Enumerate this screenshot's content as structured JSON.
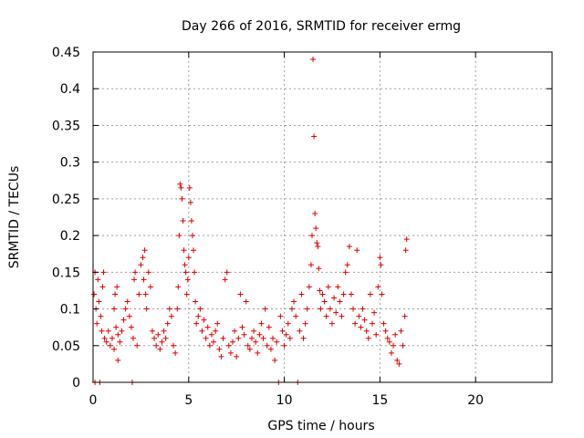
{
  "chart_data": {
    "type": "scatter",
    "title": "Day 266 of 2016, SRMTID for receiver ermg",
    "xlabel": "GPS time / hours",
    "ylabel": "SRMTID / TECUs",
    "xlim": [
      0,
      24
    ],
    "ylim": [
      0,
      0.45
    ],
    "xticks": [
      0,
      5,
      10,
      15,
      20
    ],
    "xtick_labels": [
      "0",
      "5",
      "10",
      "15",
      "20"
    ],
    "yticks": [
      0,
      0.05,
      0.1,
      0.15,
      0.2,
      0.25,
      0.3,
      0.35,
      0.4,
      0.45
    ],
    "ytick_labels": [
      "0",
      "0.05",
      "0.1",
      "0.15",
      "0.2",
      "0.25",
      "0.3",
      "0.35",
      "0.4",
      "0.45"
    ],
    "grid": true,
    "marker": "plus",
    "series": [
      {
        "name": "SRMTID",
        "color": "#e00000",
        "points": [
          [
            0.05,
            0.12
          ],
          [
            0.1,
            0.15
          ],
          [
            0.1,
            0.0
          ],
          [
            0.15,
            0.1
          ],
          [
            0.2,
            0.08
          ],
          [
            0.25,
            0.14
          ],
          [
            0.3,
            0.11
          ],
          [
            0.35,
            0.0
          ],
          [
            0.4,
            0.09
          ],
          [
            0.45,
            0.07
          ],
          [
            0.5,
            0.13
          ],
          [
            0.55,
            0.15
          ],
          [
            0.6,
            0.06
          ],
          [
            0.7,
            0.055
          ],
          [
            0.8,
            0.07
          ],
          [
            0.9,
            0.05
          ],
          [
            1.0,
            0.06
          ],
          [
            1.1,
            0.045
          ],
          [
            1.2,
            0.075
          ],
          [
            1.3,
            0.065
          ],
          [
            1.1,
            0.1
          ],
          [
            1.15,
            0.12
          ],
          [
            1.25,
            0.13
          ],
          [
            1.3,
            0.03
          ],
          [
            1.4,
            0.055
          ],
          [
            1.5,
            0.07
          ],
          [
            1.6,
            0.085
          ],
          [
            1.7,
            0.1
          ],
          [
            1.8,
            0.11
          ],
          [
            1.9,
            0.09
          ],
          [
            2.0,
            0.075
          ],
          [
            2.05,
            0.0
          ],
          [
            2.1,
            0.06
          ],
          [
            2.15,
            0.14
          ],
          [
            2.2,
            0.15
          ],
          [
            2.3,
            0.05
          ],
          [
            2.4,
            0.12
          ],
          [
            2.5,
            0.16
          ],
          [
            2.6,
            0.17
          ],
          [
            2.65,
            0.14
          ],
          [
            2.7,
            0.18
          ],
          [
            2.75,
            0.12
          ],
          [
            2.8,
            0.1
          ],
          [
            2.9,
            0.15
          ],
          [
            3.0,
            0.13
          ],
          [
            3.1,
            0.07
          ],
          [
            3.2,
            0.06
          ],
          [
            3.3,
            0.05
          ],
          [
            3.4,
            0.065
          ],
          [
            3.5,
            0.045
          ],
          [
            3.6,
            0.055
          ],
          [
            3.7,
            0.07
          ],
          [
            3.8,
            0.06
          ],
          [
            3.9,
            0.08
          ],
          [
            4.0,
            0.1
          ],
          [
            4.1,
            0.09
          ],
          [
            4.2,
            0.05
          ],
          [
            4.3,
            0.04
          ],
          [
            4.4,
            0.1
          ],
          [
            4.45,
            0.13
          ],
          [
            4.5,
            0.2
          ],
          [
            4.55,
            0.27
          ],
          [
            4.6,
            0.265
          ],
          [
            4.65,
            0.25
          ],
          [
            4.7,
            0.22
          ],
          [
            4.75,
            0.18
          ],
          [
            4.8,
            0.16
          ],
          [
            4.85,
            0.15
          ],
          [
            4.9,
            0.12
          ],
          [
            4.95,
            0.14
          ],
          [
            5.0,
            0.17
          ],
          [
            5.05,
            0.265
          ],
          [
            5.1,
            0.245
          ],
          [
            5.15,
            0.22
          ],
          [
            5.2,
            0.2
          ],
          [
            5.25,
            0.18
          ],
          [
            5.3,
            0.15
          ],
          [
            5.35,
            0.11
          ],
          [
            5.4,
            0.08
          ],
          [
            5.5,
            0.09
          ],
          [
            5.6,
            0.1
          ],
          [
            5.7,
            0.07
          ],
          [
            5.8,
            0.085
          ],
          [
            5.9,
            0.06
          ],
          [
            6.0,
            0.075
          ],
          [
            6.1,
            0.05
          ],
          [
            6.2,
            0.065
          ],
          [
            6.3,
            0.055
          ],
          [
            6.4,
            0.07
          ],
          [
            6.5,
            0.08
          ],
          [
            6.6,
            0.045
          ],
          [
            6.7,
            0.035
          ],
          [
            6.8,
            0.06
          ],
          [
            6.9,
            0.14
          ],
          [
            7.0,
            0.15
          ],
          [
            7.1,
            0.05
          ],
          [
            7.2,
            0.04
          ],
          [
            7.3,
            0.055
          ],
          [
            7.4,
            0.07
          ],
          [
            7.5,
            0.035
          ],
          [
            7.6,
            0.06
          ],
          [
            7.7,
            0.12
          ],
          [
            7.8,
            0.075
          ],
          [
            7.9,
            0.065
          ],
          [
            8.0,
            0.11
          ],
          [
            8.1,
            0.05
          ],
          [
            8.2,
            0.045
          ],
          [
            8.3,
            0.06
          ],
          [
            8.4,
            0.07
          ],
          [
            8.5,
            0.055
          ],
          [
            8.6,
            0.04
          ],
          [
            8.7,
            0.065
          ],
          [
            8.8,
            0.08
          ],
          [
            8.9,
            0.06
          ],
          [
            9.0,
            0.1
          ],
          [
            9.1,
            0.05
          ],
          [
            9.2,
            0.075
          ],
          [
            9.3,
            0.045
          ],
          [
            9.4,
            0.06
          ],
          [
            9.5,
            0.03
          ],
          [
            9.6,
            0.055
          ],
          [
            9.7,
            0.0
          ],
          [
            9.8,
            0.09
          ],
          [
            9.9,
            0.07
          ],
          [
            10.0,
            0.05
          ],
          [
            10.1,
            0.065
          ],
          [
            10.2,
            0.08
          ],
          [
            10.3,
            0.06
          ],
          [
            10.4,
            0.1
          ],
          [
            10.5,
            0.11
          ],
          [
            10.6,
            0.09
          ],
          [
            10.7,
            0.0
          ],
          [
            10.8,
            0.07
          ],
          [
            10.9,
            0.12
          ],
          [
            11.0,
            0.06
          ],
          [
            11.1,
            0.08
          ],
          [
            11.2,
            0.1
          ],
          [
            11.3,
            0.13
          ],
          [
            11.4,
            0.16
          ],
          [
            11.45,
            0.2
          ],
          [
            11.5,
            0.44
          ],
          [
            11.55,
            0.335
          ],
          [
            11.6,
            0.23
          ],
          [
            11.65,
            0.21
          ],
          [
            11.7,
            0.19
          ],
          [
            11.75,
            0.185
          ],
          [
            11.8,
            0.155
          ],
          [
            11.85,
            0.125
          ],
          [
            11.9,
            0.1
          ],
          [
            12.0,
            0.12
          ],
          [
            12.1,
            0.11
          ],
          [
            12.2,
            0.09
          ],
          [
            12.3,
            0.13
          ],
          [
            12.4,
            0.1
          ],
          [
            12.5,
            0.08
          ],
          [
            12.6,
            0.115
          ],
          [
            12.7,
            0.095
          ],
          [
            12.8,
            0.13
          ],
          [
            12.9,
            0.11
          ],
          [
            13.0,
            0.09
          ],
          [
            13.1,
            0.12
          ],
          [
            13.2,
            0.15
          ],
          [
            13.3,
            0.16
          ],
          [
            13.4,
            0.185
          ],
          [
            13.5,
            0.12
          ],
          [
            13.6,
            0.1
          ],
          [
            13.7,
            0.08
          ],
          [
            13.8,
            0.18
          ],
          [
            13.9,
            0.09
          ],
          [
            14.0,
            0.075
          ],
          [
            14.1,
            0.1
          ],
          [
            14.2,
            0.085
          ],
          [
            14.3,
            0.07
          ],
          [
            14.4,
            0.06
          ],
          [
            14.5,
            0.12
          ],
          [
            14.6,
            0.08
          ],
          [
            14.7,
            0.095
          ],
          [
            14.8,
            0.065
          ],
          [
            14.9,
            0.13
          ],
          [
            15.0,
            0.17
          ],
          [
            15.05,
            0.16
          ],
          [
            15.1,
            0.12
          ],
          [
            15.2,
            0.08
          ],
          [
            15.3,
            0.07
          ],
          [
            15.4,
            0.06
          ],
          [
            15.5,
            0.055
          ],
          [
            15.6,
            0.04
          ],
          [
            15.7,
            0.05
          ],
          [
            15.8,
            0.065
          ],
          [
            15.9,
            0.03
          ],
          [
            16.0,
            0.025
          ],
          [
            16.1,
            0.07
          ],
          [
            16.2,
            0.05
          ],
          [
            16.3,
            0.09
          ],
          [
            16.35,
            0.18
          ],
          [
            16.4,
            0.195
          ]
        ]
      }
    ]
  }
}
